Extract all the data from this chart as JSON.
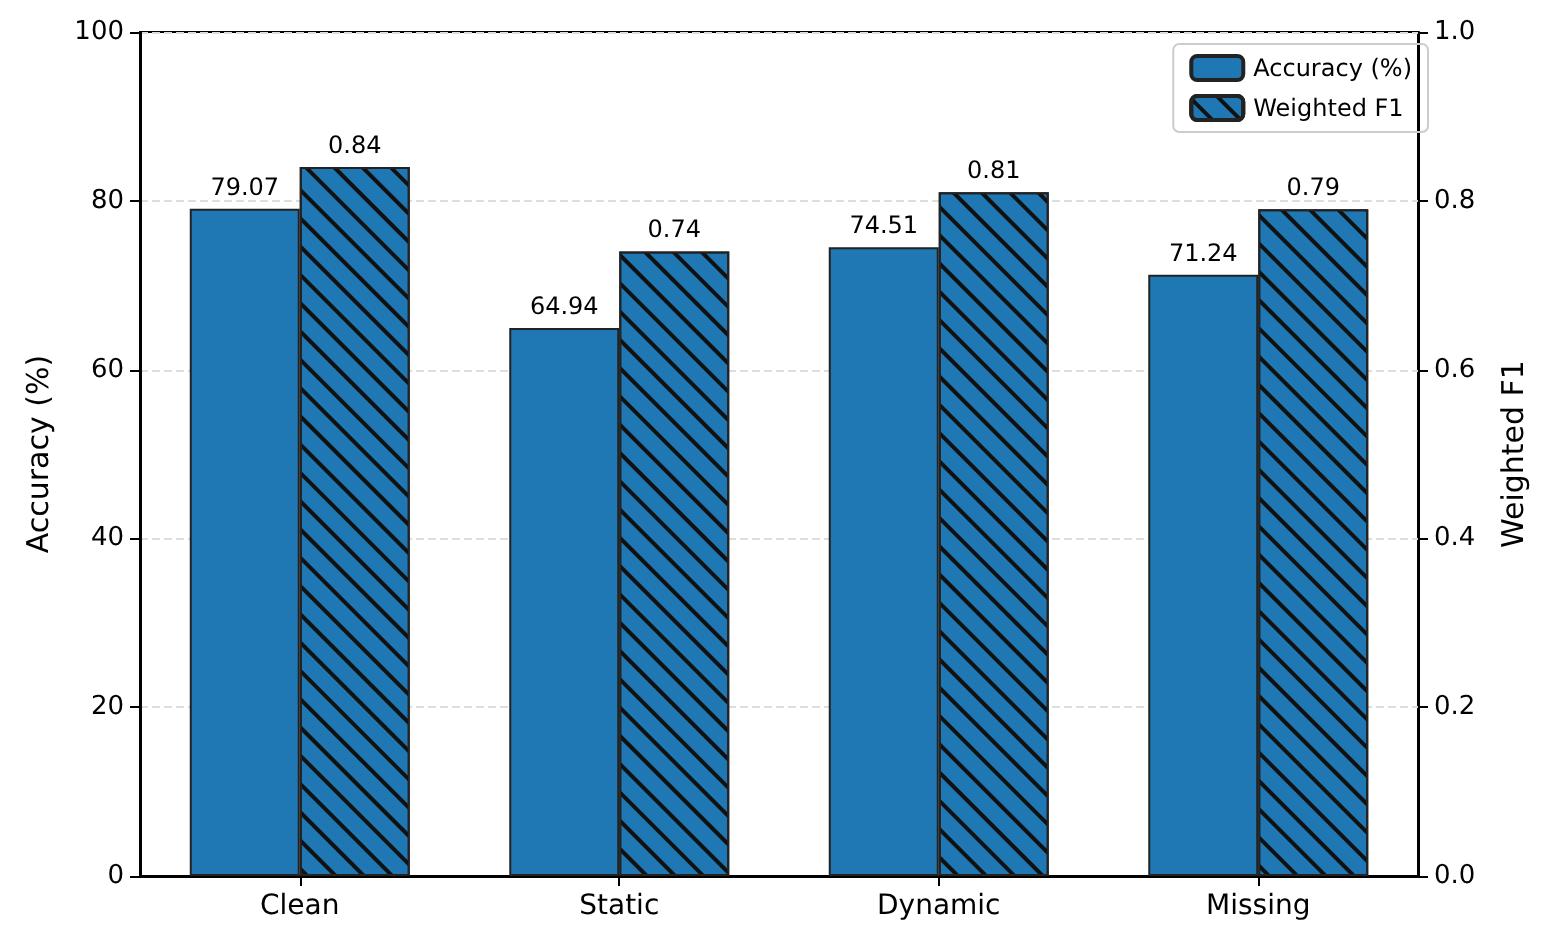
{
  "chart_data": {
    "type": "bar",
    "ylabel": "Accuracy (%)",
    "y2label": "Weighted F1",
    "categories": [
      "Clean",
      "Static",
      "Dynamic",
      "Missing"
    ],
    "series": [
      {
        "name": "Accuracy (%)",
        "color": "#1f77b4",
        "values": [
          79.07,
          64.94,
          74.51,
          71.24
        ]
      },
      {
        "name": "Weighted F1",
        "color": "#1f77b4",
        "values": [
          0.84,
          0.74,
          0.81,
          0.79
        ],
        "axis": "y2"
      }
    ],
    "ylim": [
      0,
      100
    ],
    "yticks": [
      0,
      20,
      40,
      60,
      80,
      100
    ],
    "y2lim": [
      0,
      1
    ],
    "y2ticks": [
      {
        "value": 0,
        "label": "0.0"
      },
      {
        "value": 0.2,
        "label": "0.2"
      },
      {
        "value": 0.4,
        "label": "0.4"
      },
      {
        "value": 0.6,
        "label": "0.6"
      },
      {
        "value": 0.8,
        "label": "0.8"
      },
      {
        "value": 1,
        "label": "1.0"
      }
    ],
    "grid": "y",
    "legend": "top right",
    "data_labels": true
  }
}
